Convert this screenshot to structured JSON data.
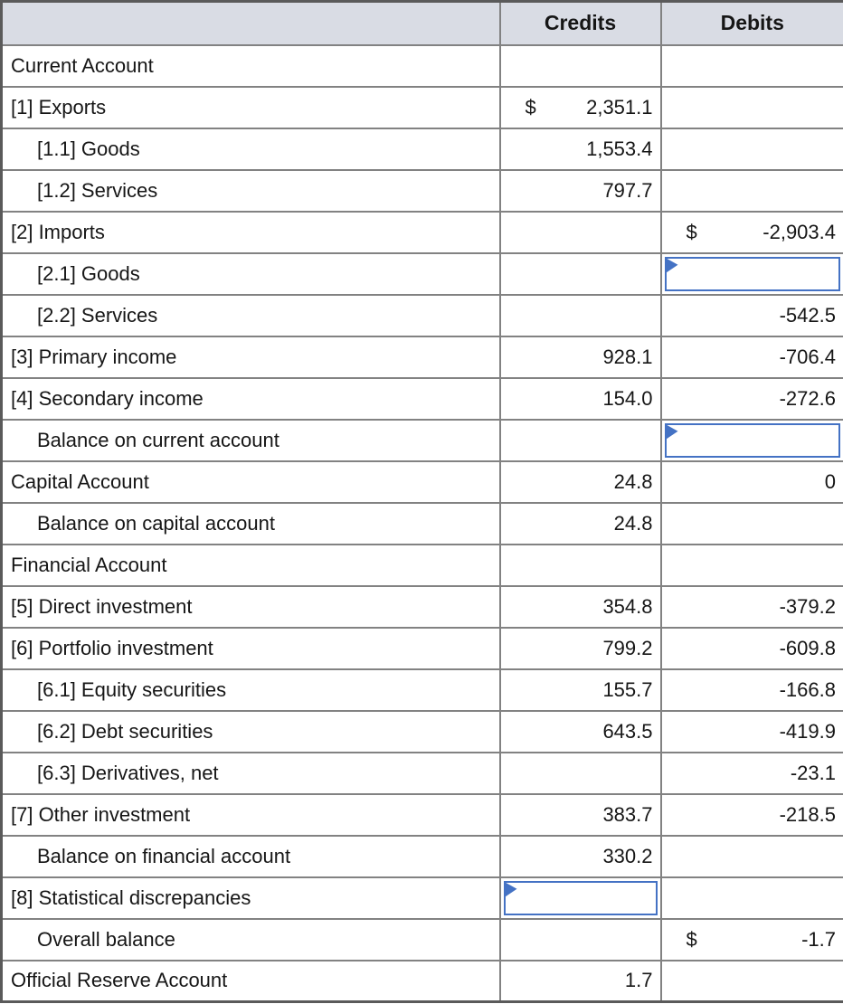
{
  "colors": {
    "header_bg": "#D9DCE4",
    "grid_border": "#828282",
    "outer_border": "#5A5A5A",
    "accent_blue": "#4472C4"
  },
  "table": {
    "header": {
      "label": "",
      "credits": "Credits",
      "debits": "Debits"
    },
    "rows": [
      {
        "label": "Current Account",
        "indent": 0,
        "credits": "",
        "debits": ""
      },
      {
        "label": "[1] Exports",
        "indent": 0,
        "credits": "2,351.1",
        "credits_currency": "$",
        "debits": ""
      },
      {
        "label": "[1.1] Goods",
        "indent": 1,
        "credits": "1,553.4",
        "debits": ""
      },
      {
        "label": "[1.2] Services",
        "indent": 1,
        "credits": "797.7",
        "debits": ""
      },
      {
        "label": "[2] Imports",
        "indent": 0,
        "credits": "",
        "debits": "-2,903.4",
        "debits_currency": "$"
      },
      {
        "label": "[2.1] Goods",
        "indent": 1,
        "credits": "",
        "debits": "",
        "debits_input": true
      },
      {
        "label": "[2.2] Services",
        "indent": 1,
        "credits": "",
        "debits": "-542.5"
      },
      {
        "label": "[3] Primary income",
        "indent": 0,
        "credits": "928.1",
        "debits": "-706.4"
      },
      {
        "label": "[4] Secondary income",
        "indent": 0,
        "credits": "154.0",
        "debits": "-272.6"
      },
      {
        "label": "Balance on current account",
        "indent": 1,
        "credits": "",
        "debits": "",
        "debits_input": true
      },
      {
        "label": "Capital Account",
        "indent": 0,
        "credits": "24.8",
        "debits": "0"
      },
      {
        "label": "Balance on capital account",
        "indent": 1,
        "credits": "24.8",
        "debits": ""
      },
      {
        "label": "Financial Account",
        "indent": 0,
        "credits": "",
        "debits": ""
      },
      {
        "label": "[5] Direct investment",
        "indent": 0,
        "credits": "354.8",
        "debits": "-379.2"
      },
      {
        "label": "[6] Portfolio investment",
        "indent": 0,
        "credits": "799.2",
        "debits": "-609.8"
      },
      {
        "label": "[6.1] Equity securities",
        "indent": 1,
        "credits": "155.7",
        "debits": "-166.8"
      },
      {
        "label": "[6.2] Debt securities",
        "indent": 1,
        "credits": "643.5",
        "debits": "-419.9"
      },
      {
        "label": "[6.3] Derivatives, net",
        "indent": 1,
        "credits": "",
        "debits": "-23.1"
      },
      {
        "label": "[7] Other investment",
        "indent": 0,
        "credits": "383.7",
        "debits": "-218.5"
      },
      {
        "label": "Balance on financial account",
        "indent": 1,
        "credits": "330.2",
        "debits": ""
      },
      {
        "label": "[8] Statistical discrepancies",
        "indent": 0,
        "credits": "",
        "debits": "",
        "credits_input": true
      },
      {
        "label": "Overall balance",
        "indent": 1,
        "credits": "",
        "debits": "-1.7",
        "debits_currency": "$"
      },
      {
        "label": "Official Reserve Account",
        "indent": 0,
        "credits": "1.7",
        "debits": ""
      }
    ]
  }
}
